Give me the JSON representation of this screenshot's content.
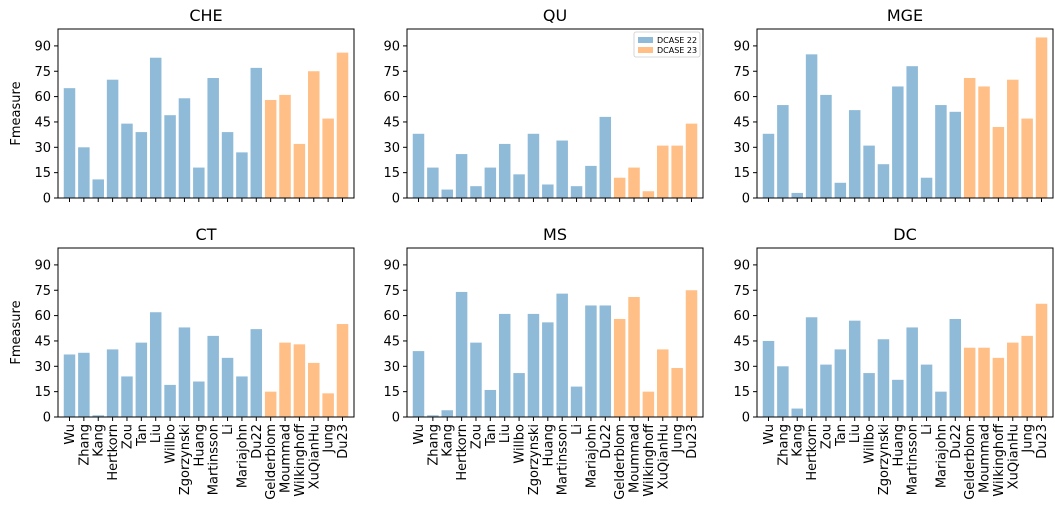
{
  "colors": {
    "dcase22": "#8fbbd9",
    "dcase23": "#ffbf86"
  },
  "legend": {
    "items": [
      "DCASE 22",
      "DCASE 23"
    ],
    "panel": "QU",
    "placement": "upper-right"
  },
  "chart_data": [
    {
      "type": "bar",
      "title": "CHE",
      "ylabel": "Fmeasure",
      "ylim": [
        0,
        100
      ],
      "yticks": [
        0,
        15,
        30,
        45,
        60,
        75,
        90
      ],
      "categories": [
        "Wu",
        "Zhang",
        "Kang",
        "Hertkorn",
        "Zou",
        "Tan",
        "Liu",
        "Willbo",
        "Zgorzynski",
        "Huang",
        "Martinsson",
        "Li",
        "Mariajohn",
        "Du22",
        "Gelderblom",
        "Moummad",
        "Wilkinghoff",
        "XuQianHu",
        "Jung",
        "Du23"
      ],
      "groups": [
        "DCASE 22",
        "DCASE 22",
        "DCASE 22",
        "DCASE 22",
        "DCASE 22",
        "DCASE 22",
        "DCASE 22",
        "DCASE 22",
        "DCASE 22",
        "DCASE 22",
        "DCASE 22",
        "DCASE 22",
        "DCASE 22",
        "DCASE 22",
        "DCASE 23",
        "DCASE 23",
        "DCASE 23",
        "DCASE 23",
        "DCASE 23",
        "DCASE 23"
      ],
      "values": [
        65,
        30,
        11,
        70,
        44,
        39,
        83,
        49,
        59,
        18,
        71,
        39,
        27,
        77,
        58,
        61,
        32,
        75,
        47,
        86
      ],
      "show_xticklabels": false
    },
    {
      "type": "bar",
      "title": "QU",
      "ylabel": "",
      "ylim": [
        0,
        100
      ],
      "yticks": [
        0,
        15,
        30,
        45,
        60,
        75,
        90
      ],
      "categories": [
        "Wu",
        "Zhang",
        "Kang",
        "Hertkorn",
        "Zou",
        "Tan",
        "Liu",
        "Willbo",
        "Zgorzynski",
        "Huang",
        "Martinsson",
        "Li",
        "Mariajohn",
        "Du22",
        "Gelderblom",
        "Moummad",
        "Wilkinghoff",
        "XuQianHu",
        "Jung",
        "Du23"
      ],
      "groups": [
        "DCASE 22",
        "DCASE 22",
        "DCASE 22",
        "DCASE 22",
        "DCASE 22",
        "DCASE 22",
        "DCASE 22",
        "DCASE 22",
        "DCASE 22",
        "DCASE 22",
        "DCASE 22",
        "DCASE 22",
        "DCASE 22",
        "DCASE 22",
        "DCASE 23",
        "DCASE 23",
        "DCASE 23",
        "DCASE 23",
        "DCASE 23",
        "DCASE 23"
      ],
      "values": [
        38,
        18,
        5,
        26,
        7,
        18,
        32,
        14,
        38,
        8,
        34,
        7,
        19,
        48,
        12,
        18,
        4,
        31,
        31,
        44
      ],
      "show_xticklabels": false
    },
    {
      "type": "bar",
      "title": "MGE",
      "ylabel": "",
      "ylim": [
        0,
        100
      ],
      "yticks": [
        0,
        15,
        30,
        45,
        60,
        75,
        90
      ],
      "categories": [
        "Wu",
        "Zhang",
        "Kang",
        "Hertkorn",
        "Zou",
        "Tan",
        "Liu",
        "Willbo",
        "Zgorzynski",
        "Huang",
        "Martinsson",
        "Li",
        "Mariajohn",
        "Du22",
        "Gelderblom",
        "Moummad",
        "Wilkinghoff",
        "XuQianHu",
        "Jung",
        "Du23"
      ],
      "groups": [
        "DCASE 22",
        "DCASE 22",
        "DCASE 22",
        "DCASE 22",
        "DCASE 22",
        "DCASE 22",
        "DCASE 22",
        "DCASE 22",
        "DCASE 22",
        "DCASE 22",
        "DCASE 22",
        "DCASE 22",
        "DCASE 22",
        "DCASE 22",
        "DCASE 23",
        "DCASE 23",
        "DCASE 23",
        "DCASE 23",
        "DCASE 23",
        "DCASE 23"
      ],
      "values": [
        38,
        55,
        3,
        85,
        61,
        9,
        52,
        31,
        20,
        66,
        78,
        12,
        55,
        51,
        71,
        66,
        42,
        70,
        47,
        95
      ],
      "show_xticklabels": false
    },
    {
      "type": "bar",
      "title": "CT",
      "ylabel": "Fmeasure",
      "ylim": [
        0,
        100
      ],
      "yticks": [
        0,
        15,
        30,
        45,
        60,
        75,
        90
      ],
      "categories": [
        "Wu",
        "Zhang",
        "Kang",
        "Hertkorn",
        "Zou",
        "Tan",
        "Liu",
        "Willbo",
        "Zgorzynski",
        "Huang",
        "Martinsson",
        "Li",
        "Mariajohn",
        "Du22",
        "Gelderblom",
        "Moummad",
        "Wilkinghoff",
        "XuQianHu",
        "Jung",
        "Du23"
      ],
      "groups": [
        "DCASE 22",
        "DCASE 22",
        "DCASE 22",
        "DCASE 22",
        "DCASE 22",
        "DCASE 22",
        "DCASE 22",
        "DCASE 22",
        "DCASE 22",
        "DCASE 22",
        "DCASE 22",
        "DCASE 22",
        "DCASE 22",
        "DCASE 22",
        "DCASE 23",
        "DCASE 23",
        "DCASE 23",
        "DCASE 23",
        "DCASE 23",
        "DCASE 23"
      ],
      "values": [
        37,
        38,
        1,
        40,
        24,
        44,
        62,
        19,
        53,
        21,
        48,
        35,
        24,
        52,
        15,
        44,
        43,
        32,
        14,
        55
      ],
      "show_xticklabels": true
    },
    {
      "type": "bar",
      "title": "MS",
      "ylabel": "",
      "ylim": [
        0,
        100
      ],
      "yticks": [
        0,
        15,
        30,
        45,
        60,
        75,
        90
      ],
      "categories": [
        "Wu",
        "Zhang",
        "Kang",
        "Hertkorn",
        "Zou",
        "Tan",
        "Liu",
        "Willbo",
        "Zgorzynski",
        "Huang",
        "Martinsson",
        "Li",
        "Mariajohn",
        "Du22",
        "Gelderblom",
        "Moummad",
        "Wilkinghoff",
        "XuQianHu",
        "Jung",
        "Du23"
      ],
      "groups": [
        "DCASE 22",
        "DCASE 22",
        "DCASE 22",
        "DCASE 22",
        "DCASE 22",
        "DCASE 22",
        "DCASE 22",
        "DCASE 22",
        "DCASE 22",
        "DCASE 22",
        "DCASE 22",
        "DCASE 22",
        "DCASE 22",
        "DCASE 22",
        "DCASE 23",
        "DCASE 23",
        "DCASE 23",
        "DCASE 23",
        "DCASE 23",
        "DCASE 23"
      ],
      "values": [
        39,
        1,
        4,
        74,
        44,
        16,
        61,
        26,
        61,
        56,
        73,
        18,
        66,
        66,
        58,
        71,
        15,
        40,
        29,
        75
      ],
      "show_xticklabels": true
    },
    {
      "type": "bar",
      "title": "DC",
      "ylabel": "",
      "ylim": [
        0,
        100
      ],
      "yticks": [
        0,
        15,
        30,
        45,
        60,
        75,
        90
      ],
      "categories": [
        "Wu",
        "Zhang",
        "Kang",
        "Hertkorn",
        "Zou",
        "Tan",
        "Liu",
        "Willbo",
        "Zgorzynski",
        "Huang",
        "Martinsson",
        "Li",
        "Mariajohn",
        "Du22",
        "Gelderblom",
        "Moummad",
        "Wilkinghoff",
        "XuQianHu",
        "Jung",
        "Du23"
      ],
      "groups": [
        "DCASE 22",
        "DCASE 22",
        "DCASE 22",
        "DCASE 22",
        "DCASE 22",
        "DCASE 22",
        "DCASE 22",
        "DCASE 22",
        "DCASE 22",
        "DCASE 22",
        "DCASE 22",
        "DCASE 22",
        "DCASE 22",
        "DCASE 22",
        "DCASE 23",
        "DCASE 23",
        "DCASE 23",
        "DCASE 23",
        "DCASE 23",
        "DCASE 23"
      ],
      "values": [
        45,
        30,
        5,
        59,
        31,
        40,
        57,
        26,
        46,
        22,
        53,
        31,
        15,
        58,
        41,
        41,
        35,
        44,
        48,
        67
      ],
      "show_xticklabels": true
    }
  ]
}
